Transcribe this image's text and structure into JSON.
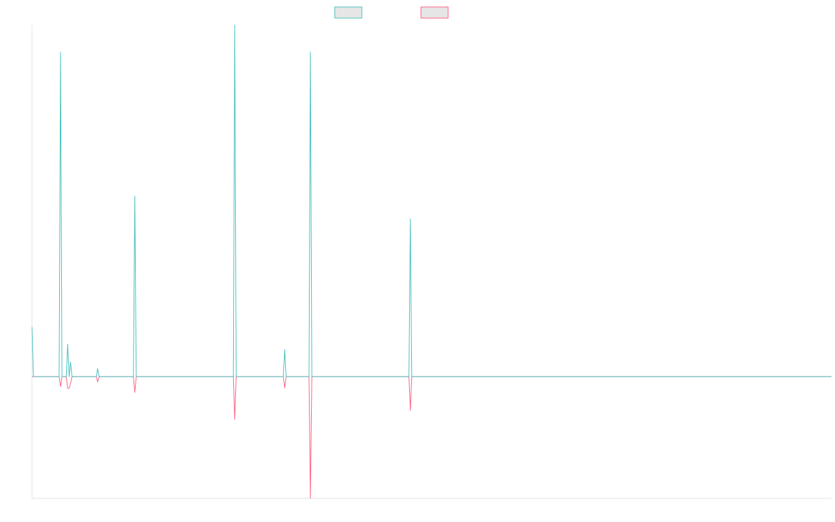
{
  "colors": {
    "series_a": "#4bc0c0",
    "series_b": "#ff6384",
    "axis": "#e2e2e2",
    "legend_fill": "#e6e6e6"
  },
  "chart_data": {
    "type": "line",
    "title": "",
    "xlabel": "",
    "ylabel": "",
    "grid": false,
    "legend_position": "top-center",
    "x_count": 241,
    "ylim": [
      -27,
      78
    ],
    "series": [
      {
        "name": "",
        "color": "#4bc0c0",
        "points": [
          [
            0,
            11
          ],
          [
            1,
            0
          ],
          [
            19,
            0
          ],
          [
            20,
            72
          ],
          [
            21,
            0
          ],
          [
            24,
            0
          ],
          [
            25,
            7.2
          ],
          [
            26,
            0
          ],
          [
            27,
            3.2
          ],
          [
            28,
            0
          ],
          [
            45,
            0
          ],
          [
            46,
            1.8
          ],
          [
            47,
            0
          ],
          [
            71,
            0
          ],
          [
            72,
            40
          ],
          [
            73,
            0
          ],
          [
            141,
            0
          ],
          [
            142,
            78
          ],
          [
            143,
            0
          ],
          [
            176,
            0
          ],
          [
            177,
            6
          ],
          [
            178,
            0
          ],
          [
            194,
            0
          ],
          [
            195,
            72
          ],
          [
            196,
            0
          ],
          [
            264,
            0
          ],
          [
            265,
            35
          ],
          [
            266,
            0
          ],
          [
            560,
            0
          ]
        ]
      },
      {
        "name": "",
        "color": "#ff6384",
        "points": [
          [
            0,
            0
          ],
          [
            19,
            0
          ],
          [
            20,
            -2.2
          ],
          [
            21,
            0
          ],
          [
            24,
            0
          ],
          [
            25,
            -2.6
          ],
          [
            26,
            -2.6
          ],
          [
            27,
            -1.5
          ],
          [
            28,
            0
          ],
          [
            45,
            0
          ],
          [
            46,
            -1.2
          ],
          [
            47,
            0
          ],
          [
            71,
            0
          ],
          [
            72,
            -3.5
          ],
          [
            73,
            0
          ],
          [
            141,
            0
          ],
          [
            142,
            -9.5
          ],
          [
            143,
            0
          ],
          [
            176,
            0
          ],
          [
            177,
            -2.5
          ],
          [
            178,
            0
          ],
          [
            194,
            0
          ],
          [
            195,
            -27
          ],
          [
            196,
            0
          ],
          [
            264,
            0
          ],
          [
            265,
            -7.5
          ],
          [
            266,
            0
          ],
          [
            560,
            0
          ]
        ]
      }
    ]
  }
}
